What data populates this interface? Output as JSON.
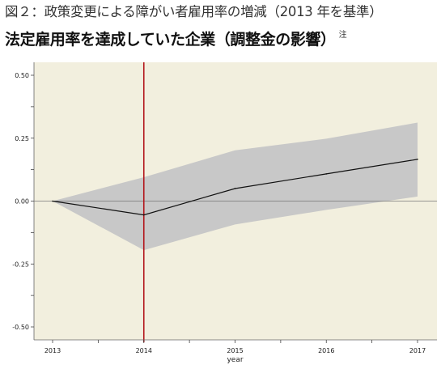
{
  "header": {
    "figure_label": "図２：政策変更による障がい者雇用率の増減（2013 年を基準）",
    "title": "法定雇用率を達成していた企業（調整金の影響）",
    "note_mark": "注"
  },
  "colors": {
    "background": "#f2efde",
    "band": "#c8c8c8",
    "line": "#111111",
    "event_line": "#b3161c",
    "zero_line": "#777777"
  },
  "chart_data": {
    "type": "line",
    "title": "法定雇用率を達成していた企業（調整金の影響）",
    "xlabel": "year",
    "ylabel": "",
    "x": [
      2013,
      2014,
      2015,
      2016,
      2017
    ],
    "series": [
      {
        "values": [
          0.0,
          -0.055,
          0.05,
          0.108,
          0.166
        ],
        "lower": [
          0.0,
          -0.195,
          -0.093,
          -0.035,
          0.018
        ],
        "upper": [
          0.0,
          0.095,
          0.202,
          0.248,
          0.312
        ]
      }
    ],
    "xlim": [
      2012.9,
      2017.2
    ],
    "ylim": [
      -0.52,
      0.52
    ],
    "x_tick_labels": [
      "2013",
      "2014",
      "2015",
      "2016",
      "2017"
    ],
    "y_tick_labels": [
      "0.50",
      "0.25",
      "0.00",
      "-0.25",
      "-0.50"
    ],
    "y_ticks": [
      0.5,
      0.25,
      0.0,
      -0.25,
      -0.5
    ],
    "event_line_x": 2014,
    "grid": false,
    "legend": "none"
  }
}
